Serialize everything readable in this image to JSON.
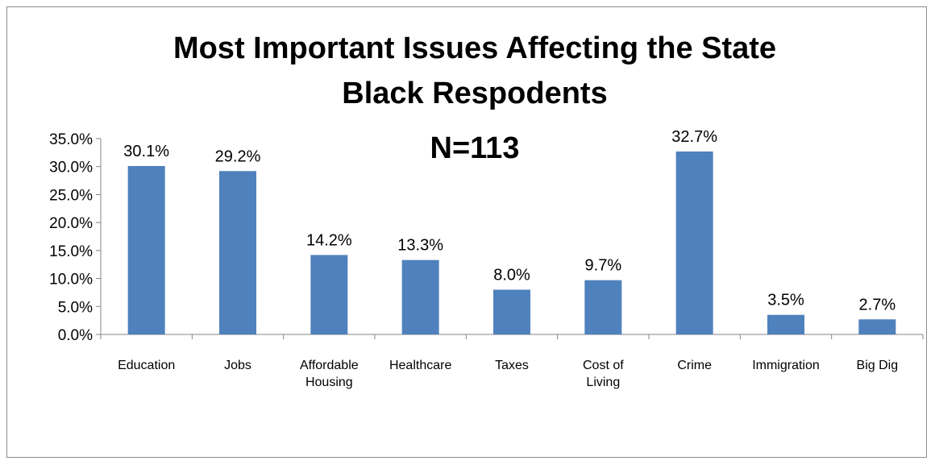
{
  "chart_data": {
    "type": "bar",
    "title_lines": [
      "Most Important Issues Affecting the State",
      "Black Respodents"
    ],
    "subtitle": "N=113",
    "categories": [
      [
        "Education"
      ],
      [
        "Jobs"
      ],
      [
        "Affordable",
        "Housing"
      ],
      [
        "Healthcare"
      ],
      [
        "Taxes"
      ],
      [
        "Cost of",
        "Living"
      ],
      [
        "Crime"
      ],
      [
        "Immigration"
      ],
      [
        "Big Dig"
      ]
    ],
    "values": [
      30.1,
      29.2,
      14.2,
      13.3,
      8.0,
      9.7,
      32.7,
      3.5,
      2.7
    ],
    "data_labels": [
      "30.1%",
      "29.2%",
      "14.2%",
      "13.3%",
      "8.0%",
      "9.7%",
      "32.7%",
      "3.5%",
      "2.7%"
    ],
    "y_ticks": [
      "0.0%",
      "5.0%",
      "10.0%",
      "15.0%",
      "20.0%",
      "25.0%",
      "30.0%",
      "35.0%"
    ],
    "ylim": [
      0,
      35
    ],
    "grid": false,
    "legend": "none",
    "bar_color": "#4f81bd"
  }
}
